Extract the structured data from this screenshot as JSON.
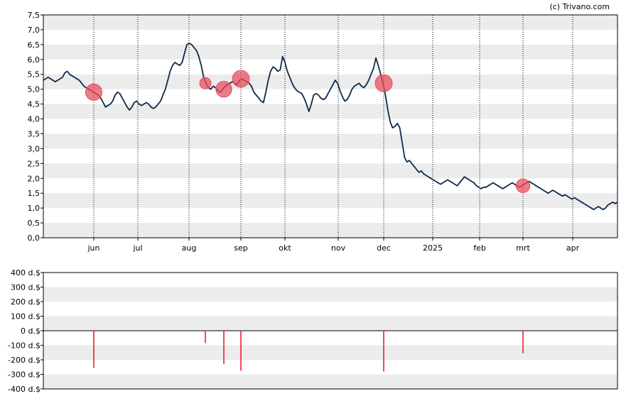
{
  "credit": "(c) Trivano.com",
  "colors": {
    "line": "#0d2a4a",
    "band": "#ececec",
    "marker": "#e8505f",
    "bar": "#e8202f",
    "axis": "#000000",
    "vgrid": "#000000"
  },
  "chart_data": [
    {
      "type": "line",
      "title": "",
      "xlabel": "",
      "ylabel": "",
      "ylim": [
        0,
        7.5
      ],
      "x_ticks": [
        "jun",
        "jul",
        "aug",
        "sep",
        "okt",
        "nov",
        "dec",
        "2025",
        "feb",
        "mrt",
        "apr"
      ],
      "y_ticks": [
        "0,0",
        "0,5",
        "1,0",
        "1,5",
        "2,0",
        "2,5",
        "3,0",
        "3,5",
        "4,0",
        "4,5",
        "5,0",
        "5,5",
        "6,0",
        "6,5",
        "7,0",
        "7,5"
      ],
      "grid": "alternating horizontal bands, dotted vertical lines at month ticks",
      "series": [
        {
          "values": [
            5.3,
            5.35,
            5.4,
            5.35,
            5.3,
            5.25,
            5.3,
            5.35,
            5.4,
            5.55,
            5.6,
            5.5,
            5.45,
            5.4,
            5.35,
            5.3,
            5.2,
            5.1,
            5.05,
            5.0,
            4.95,
            4.9,
            4.85,
            4.8,
            4.7,
            4.55,
            4.4,
            4.45,
            4.5,
            4.6,
            4.8,
            4.9,
            4.85,
            4.7,
            4.55,
            4.4,
            4.3,
            4.4,
            4.55,
            4.6,
            4.5,
            4.45,
            4.5,
            4.55,
            4.5,
            4.4,
            4.35,
            4.4,
            4.5,
            4.6,
            4.8,
            5.0,
            5.3,
            5.6,
            5.8,
            5.9,
            5.85,
            5.8,
            5.9,
            6.2,
            6.5,
            6.55,
            6.5,
            6.4,
            6.3,
            6.1,
            5.8,
            5.4,
            5.2,
            5.05,
            5.0,
            5.1,
            5.05,
            4.95,
            4.9,
            5.0,
            5.1,
            5.15,
            5.2,
            5.25,
            5.2,
            5.15,
            5.3,
            5.35,
            5.3,
            5.25,
            5.2,
            5.1,
            4.9,
            4.8,
            4.7,
            4.6,
            4.55,
            4.9,
            5.3,
            5.6,
            5.75,
            5.7,
            5.6,
            5.65,
            6.1,
            5.9,
            5.6,
            5.4,
            5.2,
            5.05,
            4.95,
            4.9,
            4.85,
            4.7,
            4.5,
            4.25,
            4.5,
            4.8,
            4.85,
            4.8,
            4.7,
            4.65,
            4.7,
            4.85,
            5.0,
            5.15,
            5.3,
            5.2,
            4.95,
            4.75,
            4.6,
            4.65,
            4.8,
            5.0,
            5.1,
            5.15,
            5.2,
            5.1,
            5.05,
            5.15,
            5.3,
            5.5,
            5.7,
            6.05,
            5.8,
            5.5,
            5.2,
            4.8,
            4.3,
            3.9,
            3.7,
            3.75,
            3.85,
            3.7,
            3.2,
            2.7,
            2.55,
            2.6,
            2.5,
            2.4,
            2.3,
            2.2,
            2.25,
            2.15,
            2.1,
            2.05,
            2.0,
            1.95,
            1.9,
            1.85,
            1.8,
            1.85,
            1.9,
            1.95,
            1.9,
            1.85,
            1.8,
            1.75,
            1.85,
            1.95,
            2.05,
            2.0,
            1.95,
            1.9,
            1.85,
            1.75,
            1.7,
            1.65,
            1.7,
            1.7,
            1.75,
            1.8,
            1.85,
            1.8,
            1.75,
            1.7,
            1.65,
            1.7,
            1.75,
            1.8,
            1.85,
            1.8,
            1.75,
            1.7,
            1.75,
            1.8,
            1.85,
            1.9,
            1.85,
            1.8,
            1.75,
            1.7,
            1.65,
            1.6,
            1.55,
            1.5,
            1.55,
            1.6,
            1.55,
            1.5,
            1.45,
            1.4,
            1.45,
            1.4,
            1.35,
            1.3,
            1.35,
            1.3,
            1.25,
            1.2,
            1.15,
            1.1,
            1.05,
            1.0,
            0.95,
            1.0,
            1.05,
            1.0,
            0.95,
            1.0,
            1.1,
            1.15,
            1.2,
            1.15,
            1.2
          ]
        }
      ]
    },
    {
      "type": "bar",
      "title": "",
      "xlabel": "",
      "ylabel": "",
      "ylim": [
        -400,
        400
      ],
      "y_ticks": [
        "400 d.$",
        "300 d.$",
        "200 d.$",
        "100 d.$",
        "0 d.$",
        "-100 d.$",
        "-200 d.$",
        "-300 d.$",
        "-400 d.$"
      ],
      "grid": "alternating horizontal bands",
      "values": [
        -255,
        -85,
        -230,
        -275,
        -280,
        -155
      ],
      "x_positions": [
        "2024-06-01",
        "2024-08-22",
        "2024-09-03",
        "2024-09-13",
        "2024-12-01",
        "2025-03-01"
      ]
    }
  ]
}
